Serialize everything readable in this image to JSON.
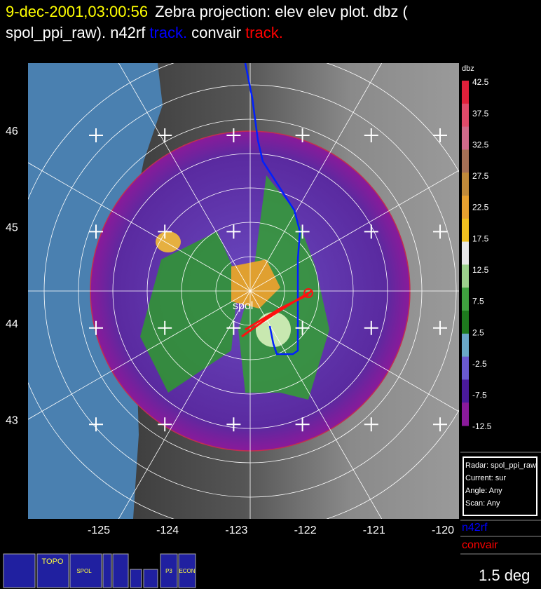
{
  "header": {
    "line1": [
      {
        "text": "9-dec-2001,03:00:56",
        "color": "#ffff00"
      },
      {
        "text": "Zebra projection: elev elev  plot.  dbz (",
        "color": "#ffffff"
      }
    ],
    "line2": [
      {
        "text": "spol_ppi_raw).   n42rf",
        "color": "#ffffff"
      },
      {
        "text": "track.",
        "color": "#0000ff"
      },
      {
        "text": "convair",
        "color": "#ffffff"
      },
      {
        "text": "track.",
        "color": "#ff0000"
      }
    ]
  },
  "map": {
    "lat_labels": [
      "46",
      "45",
      "44",
      "43"
    ],
    "lon_labels": [
      "-125",
      "-124",
      "-123",
      "-122",
      "-121",
      "-120"
    ],
    "site_label": "spol"
  },
  "colorbar": {
    "title": "dbz",
    "labels": [
      "42.5",
      "37.5",
      "32.5",
      "27.5",
      "22.5",
      "17.5",
      "12.5",
      "7.5",
      "2.5",
      "-2.5",
      "-7.5",
      "-12.5"
    ],
    "colors": [
      "#e0203a",
      "#e04a6a",
      "#d06a8a",
      "#a57055",
      "#c08a3a",
      "#e6a030",
      "#f0c020",
      "#e8e8e8",
      "#9cd08c",
      "#3fa03f",
      "#1e7a1e",
      "#6aa8c8",
      "#6a5ad0",
      "#4a1a9a",
      "#8a1a9a"
    ]
  },
  "info_box": [
    "Radar: spol_ppi_raw",
    "Current: sur",
    "Angle: Any",
    "Scan: Any"
  ],
  "legend": [
    {
      "name": "n42rf",
      "color": "#0000ff"
    },
    {
      "name": "convair",
      "color": "#ff0000"
    }
  ],
  "status": "1.5 deg",
  "icons": [
    "TOPO",
    "SPOL",
    "P3",
    "ECON"
  ]
}
